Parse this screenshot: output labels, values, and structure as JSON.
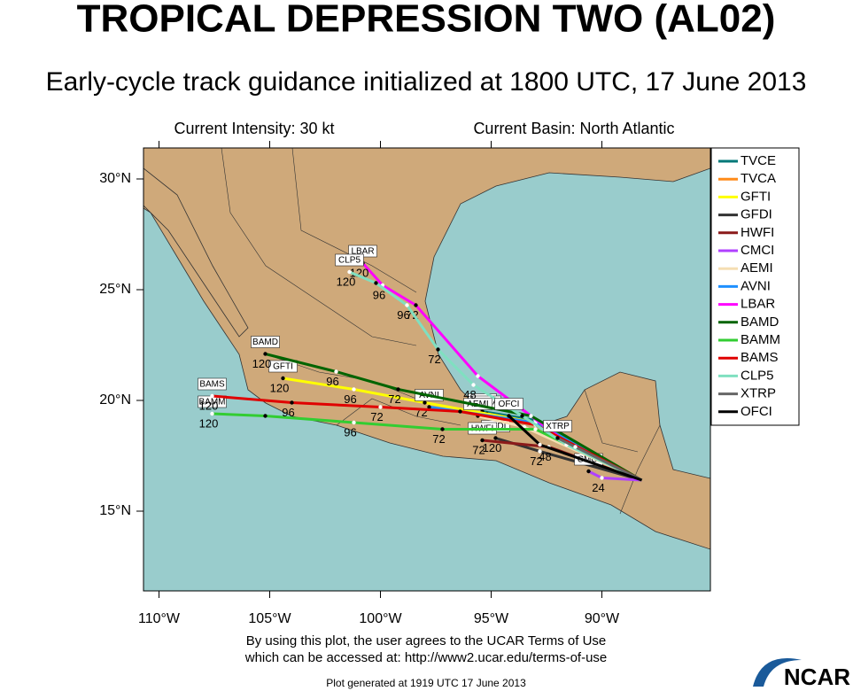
{
  "header": {
    "title": "TROPICAL DEPRESSION TWO (AL02)",
    "subtitle": "Early-cycle track guidance initialized at 1800 UTC, 17 June 2013",
    "intensity": "Current Intensity: 30 kt",
    "basin": "Current Basin: North Atlantic"
  },
  "map": {
    "xlim": [
      -110.7,
      -85.1
    ],
    "ylim": [
      11.4,
      31.4
    ],
    "xticks": [
      {
        "value": -110,
        "label": "110°W"
      },
      {
        "value": -105,
        "label": "105°W"
      },
      {
        "value": -100,
        "label": "100°W"
      },
      {
        "value": -95,
        "label": "95°W"
      },
      {
        "value": -90,
        "label": "90°W"
      }
    ],
    "yticks": [
      {
        "value": 15,
        "label": "15°N"
      },
      {
        "value": 20,
        "label": "20°N"
      },
      {
        "value": 25,
        "label": "25°N"
      },
      {
        "value": 30,
        "label": "30°N"
      }
    ],
    "tracks": [
      {
        "name": "TVCE",
        "color": "#007878",
        "lon": [
          -88.2,
          -93,
          -95.4
        ],
        "lat": [
          16.4,
          19.1,
          19.5
        ]
      },
      {
        "name": "TVCA",
        "color": "#ff8c1a",
        "lon": [
          -88.2,
          -93,
          -95.2
        ],
        "lat": [
          16.4,
          19.0,
          19.4
        ]
      },
      {
        "name": "GFTI",
        "color": "#ffff00",
        "lon": [
          -88.2,
          -93,
          -98,
          -101.2,
          -104.4
        ],
        "lat": [
          16.4,
          19.0,
          19.9,
          20.5,
          21.0
        ],
        "labels": [
          null,
          null,
          "72",
          "96",
          "120"
        ]
      },
      {
        "name": "GFDI",
        "color": "#333333",
        "lon": [
          -88.2,
          -92.8,
          -94.8
        ],
        "lat": [
          16.4,
          17.7,
          18.3
        ],
        "labels": [
          null,
          "72",
          "120"
        ]
      },
      {
        "name": "HWFI",
        "color": "#8b1a1a",
        "lon": [
          -88.2,
          -92.4,
          -95.4
        ],
        "lat": [
          16.4,
          17.9,
          18.2
        ],
        "labels": [
          null,
          "48",
          "72"
        ]
      },
      {
        "name": "CMCI",
        "color": "#b040ff",
        "lon": [
          -88.2,
          -90,
          -90.6
        ],
        "lat": [
          16.4,
          16.5,
          16.8
        ],
        "labels": [
          null,
          "24",
          null
        ]
      },
      {
        "name": "AEMI",
        "color": "#f5deb3",
        "lon": [
          -88.2,
          -93.5,
          -95.6
        ],
        "lat": [
          16.4,
          18.8,
          19.3
        ]
      },
      {
        "name": "AVNI",
        "color": "#1e90ff",
        "lon": [
          -88.2,
          -93,
          -97.8
        ],
        "lat": [
          16.4,
          19.0,
          19.7
        ]
      },
      {
        "name": "LBAR",
        "color": "#ff00ff",
        "lon": [
          -88.2,
          -91.6,
          -94.0,
          -95.6,
          -98.4,
          -99.9,
          -100.8
        ],
        "lat": [
          16.4,
          18.1,
          19.9,
          21.1,
          24.3,
          25.2,
          26.2
        ],
        "labels": [
          null,
          null,
          null,
          null,
          "72",
          "96",
          "120"
        ]
      },
      {
        "name": "BAMD",
        "color": "#006400",
        "lon": [
          -88.2,
          -93.2,
          -99.2,
          -102,
          -105.2
        ],
        "lat": [
          16.4,
          19.3,
          20.5,
          21.3,
          22.1
        ],
        "labels": [
          null,
          null,
          "72",
          "96",
          "120"
        ]
      },
      {
        "name": "BAMM",
        "color": "#32cd32",
        "lon": [
          -88.2,
          -93,
          -97.2,
          -101.2,
          -105.2,
          -107.6
        ],
        "lat": [
          16.4,
          18.7,
          18.7,
          19.0,
          19.3,
          19.4
        ],
        "labels": [
          null,
          null,
          "72",
          "96",
          null,
          "120"
        ]
      },
      {
        "name": "BAMS",
        "color": "#e00000",
        "lon": [
          -88.2,
          -93,
          -96.4,
          -100,
          -104,
          -107.6
        ],
        "lat": [
          16.4,
          18.9,
          19.5,
          19.7,
          19.9,
          20.2
        ],
        "labels": [
          null,
          null,
          null,
          "72",
          "96",
          "120"
        ]
      },
      {
        "name": "CLP5",
        "color": "#7fe0c0",
        "lon": [
          -88.2,
          -91.6,
          -93.6,
          -95.8,
          -97.4,
          -98.8,
          -100.2,
          -101.4
        ],
        "lat": [
          16.4,
          18.0,
          19.3,
          20.7,
          22.3,
          24.3,
          25.3,
          25.8
        ],
        "labels": [
          null,
          null,
          null,
          "48",
          "72",
          "96",
          null,
          "120"
        ]
      },
      {
        "name": "XTRP",
        "color": "#666666",
        "lon": [
          -88.2,
          -91.2,
          -92
        ],
        "lat": [
          16.4,
          17.9,
          18.3
        ]
      },
      {
        "name": "OFCI",
        "color": "#000000",
        "lon": [
          -88.2,
          -92.8,
          -94.2
        ],
        "lat": [
          16.4,
          18.0,
          19.3
        ]
      }
    ]
  },
  "footer": {
    "terms": [
      "By using this plot, the user agrees to the UCAR Terms of Use",
      "which can be accessed at: http://www2.ucar.edu/terms-of-use"
    ],
    "generated": "Plot generated at 1919 UTC   17 June 2013",
    "logo": "NCAR"
  }
}
